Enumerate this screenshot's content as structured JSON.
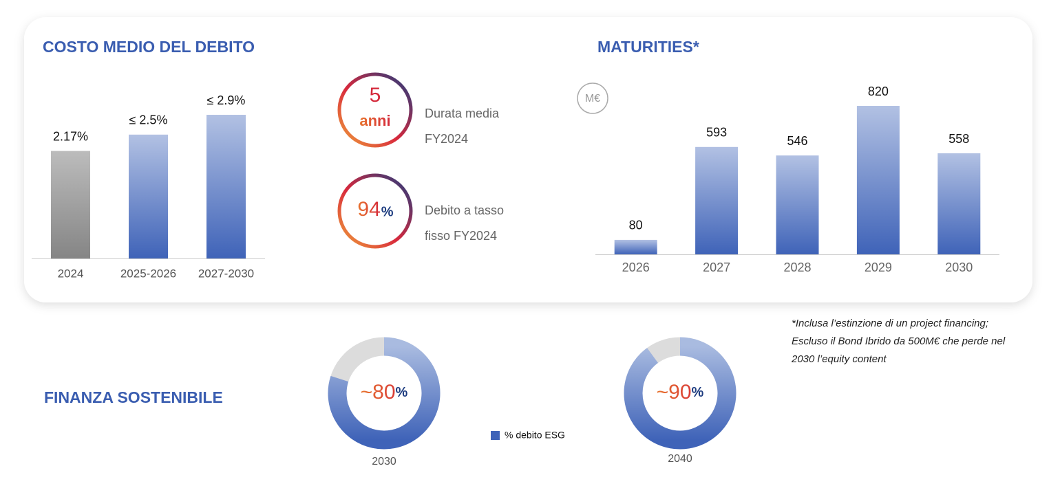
{
  "chart_data": [
    {
      "type": "bar",
      "title": "COSTO MEDIO DEL DEBITO",
      "categories": [
        "2024",
        "2025-2026",
        "2027-2030"
      ],
      "values": [
        2.17,
        2.5,
        2.9
      ],
      "value_labels": [
        "2.17%",
        "≤ 2.5%",
        "≤ 2.9%"
      ],
      "colors": [
        "#858585",
        "#3f63b8",
        "#3f63b8"
      ]
    },
    {
      "type": "bar",
      "title": "MATURITIES*",
      "unit": "M€",
      "categories": [
        "2026",
        "2027",
        "2028",
        "2029",
        "2030"
      ],
      "values": [
        80,
        593,
        546,
        820,
        558
      ],
      "colors": [
        "#3f63b8",
        "#3f63b8",
        "#3f63b8",
        "#3f63b8",
        "#3f63b8"
      ]
    },
    {
      "type": "donut",
      "title": "FINANZA SOSTENIBILE",
      "categories": [
        "2030",
        "2040"
      ],
      "series": [
        {
          "name": "% debito ESG",
          "color": "#3f63b8",
          "values": [
            80,
            90
          ],
          "value_labels": [
            "~80%",
            "~90%"
          ]
        }
      ]
    }
  ],
  "kpis": [
    {
      "value": 5,
      "unit": "anni",
      "label": "Durata media FY2024"
    },
    {
      "value": 94,
      "unit": "%",
      "label": "Debito a tasso fisso FY2024"
    }
  ],
  "footnote": [
    "*Inclusa l’estinzione di un project financing;",
    "Escluso il Bond Ibrido da 500M€ che perde nel",
    "2030 l’equity content"
  ]
}
